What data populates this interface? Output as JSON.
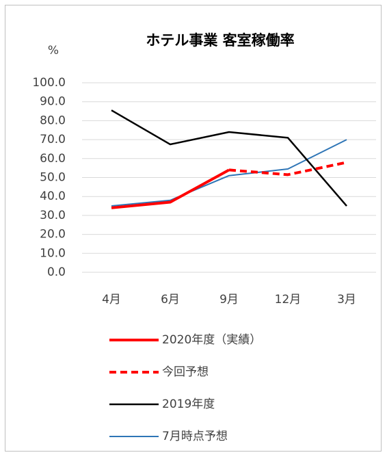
{
  "chart_data": {
    "type": "line",
    "title": "ホテル事業 客室稼働率",
    "y_label": "%",
    "categories": [
      "4月",
      "6月",
      "9月",
      "12月",
      "3月"
    ],
    "ylim": [
      0,
      100
    ],
    "yticks": [
      {
        "value": 0,
        "label": "0.0"
      },
      {
        "value": 10,
        "label": "10.0"
      },
      {
        "value": 20,
        "label": "20.0"
      },
      {
        "value": 30,
        "label": "30.0"
      },
      {
        "value": 40,
        "label": "40.0"
      },
      {
        "value": 50,
        "label": "50.0"
      },
      {
        "value": 60,
        "label": "60.0"
      },
      {
        "value": 70,
        "label": "70.0"
      },
      {
        "value": 80,
        "label": "80.0"
      },
      {
        "value": 90,
        "label": "90.0"
      },
      {
        "value": 100,
        "label": "100.0"
      }
    ],
    "grid": true,
    "legend": "bottom",
    "series": [
      {
        "name": "2020年度（実績）",
        "color": "#ff0000",
        "values": [
          34,
          37,
          54,
          null,
          null
        ]
      },
      {
        "name": "今回予想",
        "color": "#ff0000",
        "dashed": true,
        "values": [
          null,
          null,
          54,
          51.5,
          58
        ]
      },
      {
        "name": "2019年度",
        "color": "#000000",
        "values": [
          85.5,
          67.5,
          74,
          71,
          35
        ]
      },
      {
        "name": "7月時点予想",
        "color": "#2e75b6",
        "values": [
          35,
          38,
          51,
          54.5,
          70
        ]
      }
    ]
  }
}
